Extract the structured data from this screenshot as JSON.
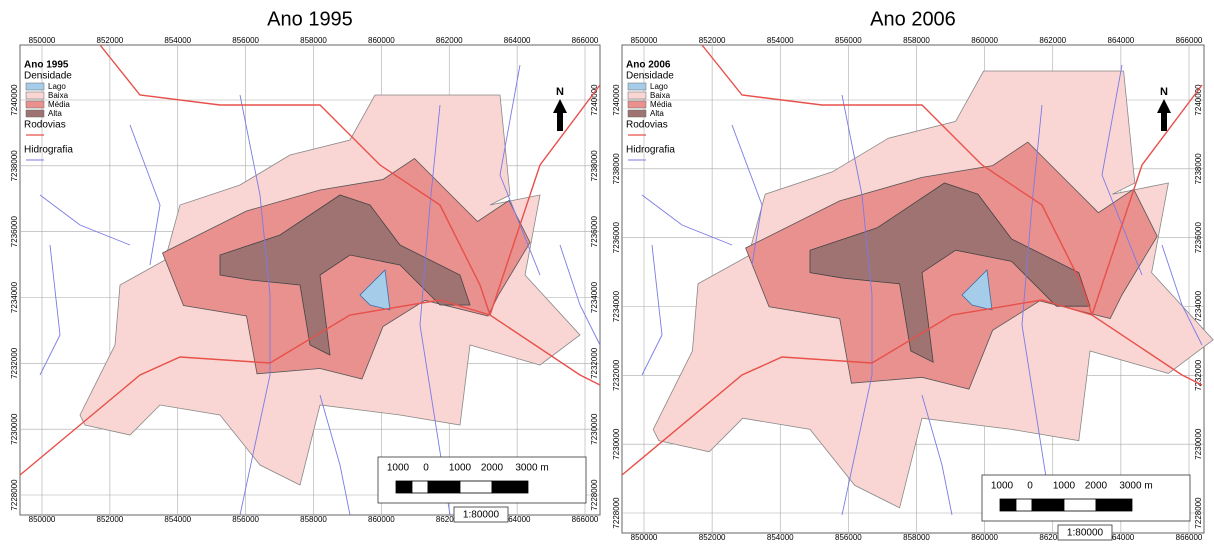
{
  "panels": [
    {
      "title": "Ano 1995",
      "legend": {
        "title": "Ano 1995",
        "subtitle": "Densidade",
        "items": [
          "Lago",
          "Baixa",
          "Média",
          "Alta"
        ],
        "roads": "Rodovias",
        "rivers": "Hidrografia"
      },
      "xticks": [
        850000,
        852000,
        854000,
        856000,
        858000,
        860000,
        862000,
        864000,
        866000
      ],
      "yticks": [
        7240000,
        7238000,
        7236000,
        7234000,
        7232000,
        7230000,
        7228000
      ],
      "north": "N",
      "scale_labels": [
        "1000",
        "0",
        "1000",
        "2000",
        "3000 m"
      ],
      "scale_ratio": "1:80000"
    },
    {
      "title": "Ano 2006",
      "legend": {
        "title": "Ano 2006",
        "subtitle": "Densidade",
        "items": [
          "Lago",
          "Baixa",
          "Média",
          "Alta"
        ],
        "roads": "Rodovias",
        "rivers": "Hidrografia"
      },
      "xticks": [
        850000,
        852000,
        854000,
        856000,
        858000,
        860000,
        862000,
        864000,
        866000
      ],
      "yticks": [
        7240000,
        7238000,
        7236000,
        7234000,
        7232000,
        7230000,
        7228000
      ],
      "north": "N",
      "scale_labels": [
        "1000",
        "0",
        "1000",
        "2000",
        "3000 m"
      ],
      "scale_ratio": "1:80000"
    }
  ]
}
